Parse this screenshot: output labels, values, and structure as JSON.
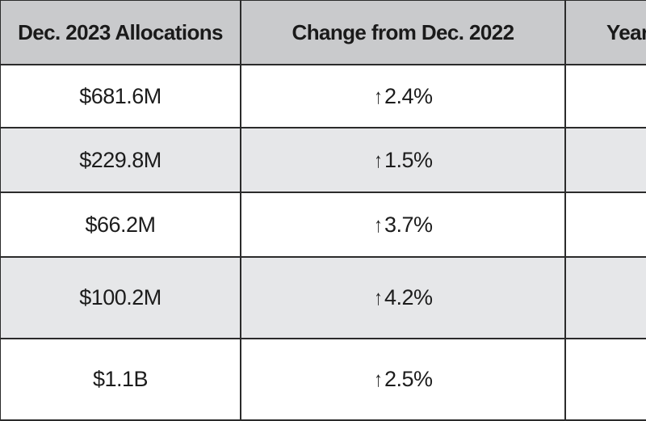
{
  "headers": [
    "Dec. 2023 Allocations",
    "Change from Dec. 2022",
    "Year"
  ],
  "rows": [
    {
      "allocation": "$681.6M",
      "change_arrow": "↑",
      "change": "2.4%",
      "year": ""
    },
    {
      "allocation": "$229.8M",
      "change_arrow": "↑",
      "change": "1.5%",
      "year": ""
    },
    {
      "allocation": "$66.2M",
      "change_arrow": "↑",
      "change": "3.7%",
      "year": ""
    },
    {
      "allocation": "$100.2M",
      "change_arrow": "↑",
      "change": "4.2%",
      "year": ""
    },
    {
      "allocation": "$1.1B",
      "change_arrow": "↑",
      "change": "2.5%",
      "year": ""
    }
  ],
  "colors": {
    "header_bg": "#c9cacc",
    "row_alt_bg": "#e6e7e9",
    "row_bg": "#ffffff",
    "border": "#2b2b2b"
  }
}
